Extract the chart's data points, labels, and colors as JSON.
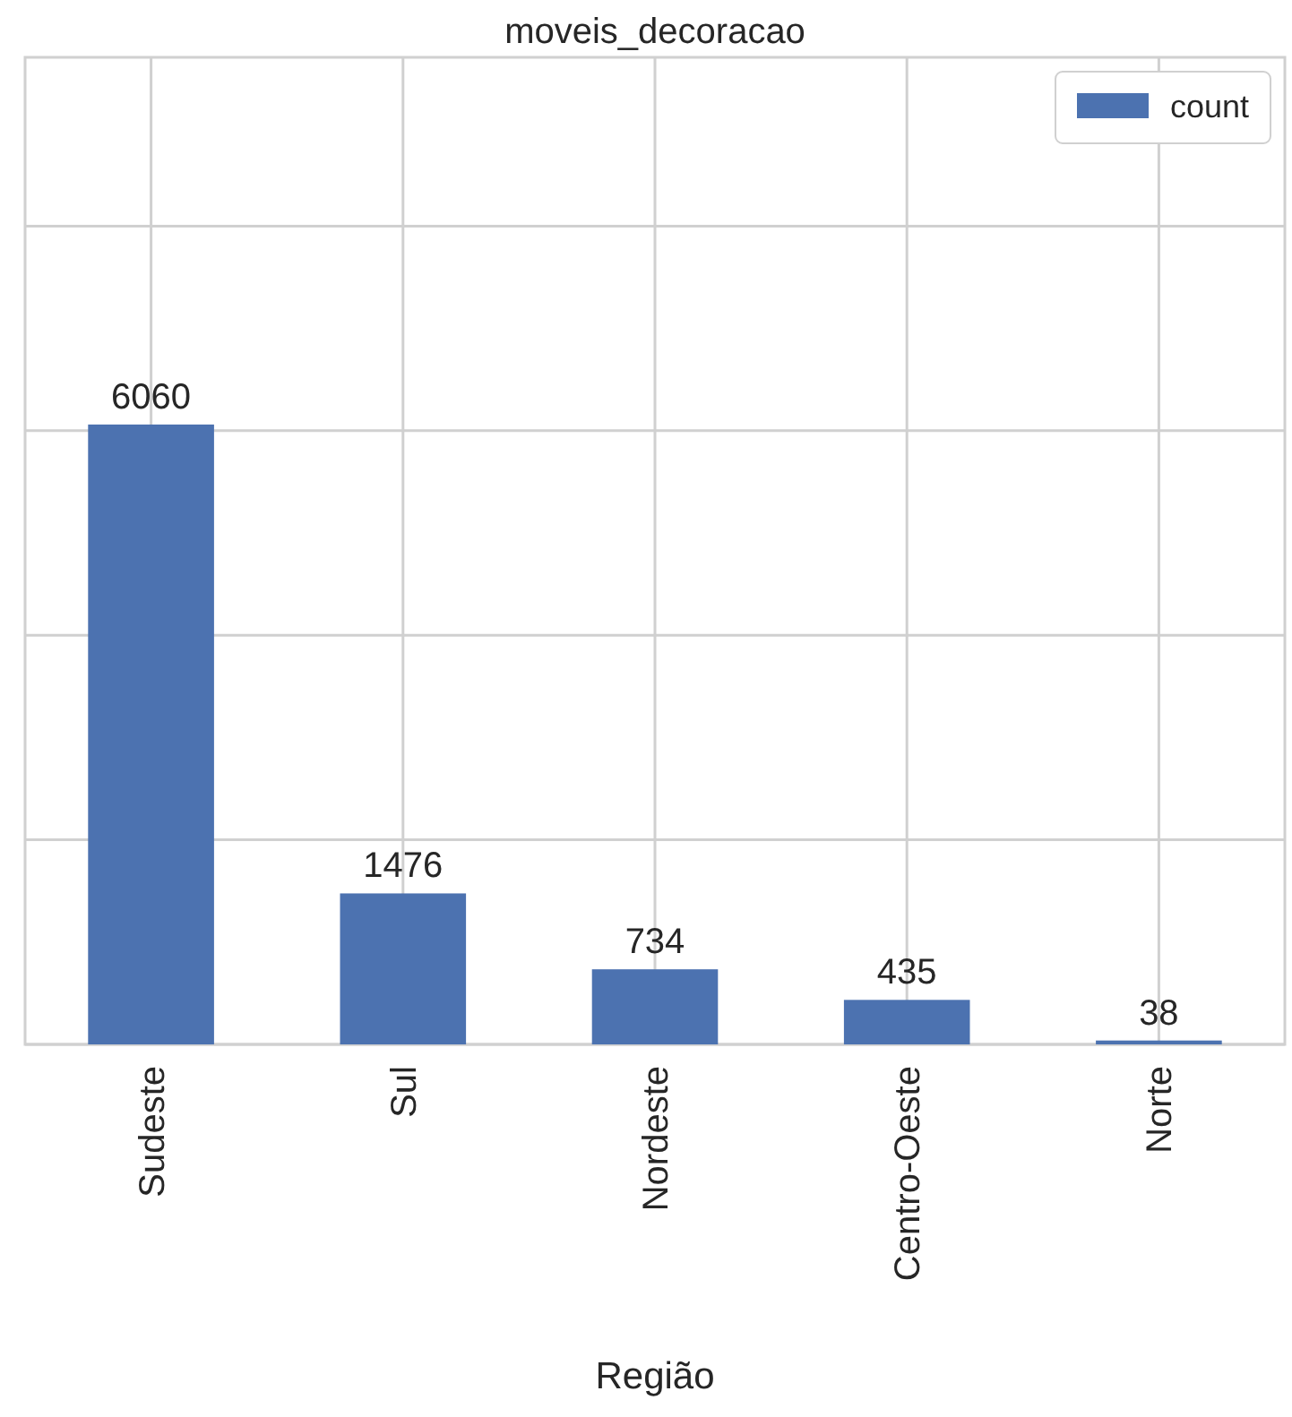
{
  "chart_data": {
    "type": "bar",
    "title": "moveis_decoracao",
    "xlabel": "Região",
    "categories": [
      "Sudeste",
      "Sul",
      "Nordeste",
      "Centro-Oeste",
      "Norte"
    ],
    "series": [
      {
        "name": "count",
        "color": "#4c72b0",
        "values": [
          6060,
          1476,
          734,
          435,
          38
        ]
      }
    ],
    "ylim": [
      0,
      9650
    ],
    "yticks": [
      {
        "value": 0,
        "label": null
      },
      {
        "value": 2000,
        "label": null
      },
      {
        "value": 4000,
        "label": null
      },
      {
        "value": 6000,
        "label": null
      },
      {
        "value": 8000,
        "label": null
      }
    ],
    "tick_labels": "x",
    "grid": true,
    "legend": "top right",
    "data_labels": true
  }
}
